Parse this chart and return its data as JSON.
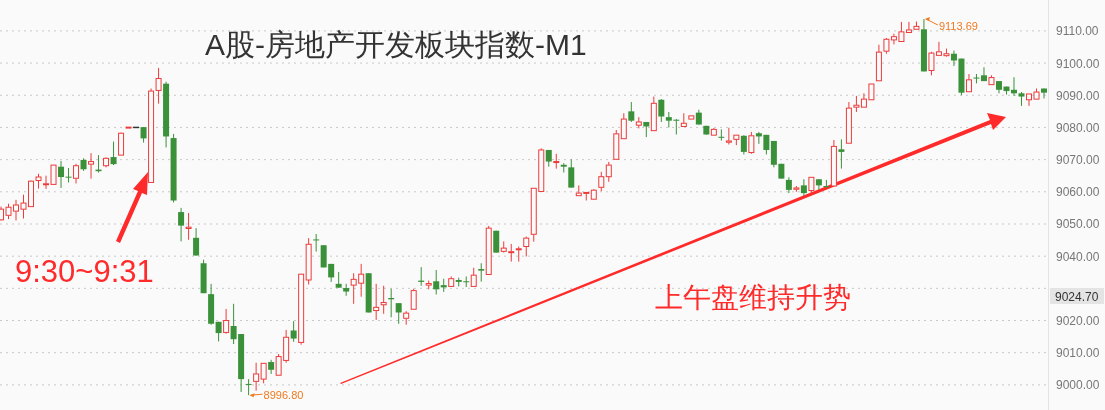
{
  "chart_data": {
    "type": "candlestick",
    "title": "A股-房地产开发板块指数-M1",
    "categories": [
      null,
      null,
      null,
      null,
      null,
      null,
      null,
      null,
      null,
      null,
      null,
      null,
      null,
      null,
      null,
      null,
      null,
      null,
      null,
      null,
      null,
      null,
      null,
      null,
      null,
      null,
      null,
      null,
      null,
      null,
      null,
      null,
      null,
      null,
      null,
      null,
      null,
      null,
      null,
      null,
      null,
      null,
      null,
      null,
      null,
      null,
      null,
      null,
      null,
      null,
      null,
      null,
      null,
      null,
      null,
      null,
      null,
      null,
      null,
      null,
      null,
      null,
      null,
      null,
      null,
      null,
      null,
      null,
      null,
      null,
      null,
      null,
      null,
      null,
      null,
      null,
      null,
      null,
      null,
      null,
      null,
      null,
      null,
      null,
      null,
      null,
      null,
      null,
      null,
      null,
      null,
      null,
      null,
      null,
      null,
      null,
      null,
      null,
      null,
      null,
      null,
      null,
      null,
      null,
      null,
      null,
      null,
      null,
      null,
      null,
      null,
      null,
      null,
      null,
      null,
      null,
      null,
      null,
      null,
      null,
      null,
      null,
      null,
      null,
      null,
      null,
      null,
      null,
      null,
      null,
      null,
      null,
      null,
      null,
      null,
      null,
      null,
      null,
      null,
      null
    ],
    "ohlc": [
      [
        9051.3,
        9055.4,
        9051.1,
        9054.6
      ],
      [
        9052.7,
        9056.3,
        9051.5,
        9055.2
      ],
      [
        9054.0,
        9057.5,
        9051.1,
        9055.9
      ],
      [
        9054.6,
        9059.1,
        9051.7,
        9056.5
      ],
      [
        9055.4,
        9063.5,
        9055.4,
        9063.3
      ],
      [
        9063.5,
        9065.6,
        9061.0,
        9064.6
      ],
      [
        9062.4,
        9065.0,
        9060.9,
        9062.5
      ],
      [
        9062.3,
        9068.3,
        9062.3,
        9068.3
      ],
      [
        9067.8,
        9069.6,
        9061.2,
        9064.6
      ],
      [
        9064.7,
        9067.4,
        9062.9,
        9064.5
      ],
      [
        9064.2,
        9068.7,
        9062.6,
        9068.1
      ],
      [
        9069.9,
        9070.4,
        9066.5,
        9067.0
      ],
      [
        9068.6,
        9072.0,
        9064.1,
        9069.4
      ],
      [
        9066.9,
        9071.4,
        9066.0,
        9066.4
      ],
      [
        9068.1,
        9070.7,
        9067.6,
        9070.4
      ],
      [
        9070.8,
        9075.6,
        9068.3,
        9068.6
      ],
      [
        9071.4,
        9078.4,
        9071.4,
        9078.2
      ],
      [
        9080.0,
        9080.1,
        9080.0,
        9080.1
      ],
      [
        9080.0,
        9080.0,
        9080.0,
        9080.0
      ],
      [
        9080.1,
        9080.1,
        9075.3,
        9076.6
      ],
      [
        9062.9,
        9092.1,
        9062.9,
        9091.3
      ],
      [
        9091.5,
        9098.5,
        9087.4,
        9095.2
      ],
      [
        9093.6,
        9094.2,
        9073.8,
        9077.2
      ],
      [
        9076.7,
        9078.0,
        9056.7,
        9057.3
      ],
      [
        9053.7,
        9055.0,
        9044.6,
        9049.5
      ],
      [
        9048.6,
        9053.4,
        9045.1,
        9049.0
      ],
      [
        9045.7,
        9048.7,
        9040.2,
        9040.2
      ],
      [
        9037.8,
        9038.9,
        9028.5,
        9028.5
      ],
      [
        9028.2,
        9031.4,
        9018.7,
        9019.0
      ],
      [
        9019.6,
        9019.6,
        9013.5,
        9016.1
      ],
      [
        9016.3,
        9023.6,
        9015.9,
        9020.0
      ],
      [
        9018.3,
        9025.2,
        9012.7,
        9014.2
      ],
      [
        9015.8,
        9015.8,
        8997.8,
        9001.8
      ],
      [
        9000.3,
        9001.8,
        8996.8,
        9000.0
      ],
      [
        9001.1,
        9006.9,
        8998.2,
        9003.4
      ],
      [
        9001.8,
        9006.7,
        9000.5,
        9006.7
      ],
      [
        9007.1,
        9007.8,
        9003.4,
        9004.7
      ],
      [
        9003.0,
        9009.6,
        9003.0,
        9008.8
      ],
      [
        9007.6,
        9017.1,
        9006.9,
        9014.8
      ],
      [
        9016.9,
        9019.8,
        9013.4,
        9014.4
      ],
      [
        9013.2,
        9034.4,
        9012.5,
        9034.4
      ],
      [
        9032.6,
        9045.6,
        9031.2,
        9043.7
      ],
      [
        9045.2,
        9046.9,
        9041.4,
        9045.0
      ],
      [
        9043.4,
        9043.4,
        9036.5,
        9036.5
      ],
      [
        9037.6,
        9037.6,
        9032.0,
        9033.4
      ],
      [
        9031.4,
        9035.1,
        9030.2,
        9030.2
      ],
      [
        9030.1,
        9031.4,
        9027.7,
        9029.0
      ],
      [
        9031.0,
        9034.7,
        9025.2,
        9032.8
      ],
      [
        9031.6,
        9037.6,
        9027.4,
        9034.4
      ],
      [
        9034.7,
        9034.7,
        9022.5,
        9022.5
      ],
      [
        9023.1,
        9031.4,
        9020.2,
        9024.1
      ],
      [
        9024.9,
        9030.8,
        9022.1,
        9025.6
      ],
      [
        9027.0,
        9029.9,
        9021.0,
        9026.6
      ],
      [
        9025.4,
        9025.4,
        9019.0,
        9022.5
      ],
      [
        9020.7,
        9022.9,
        9018.7,
        9022.3
      ],
      [
        9023.5,
        9029.9,
        9023.5,
        9029.3
      ],
      [
        9032.4,
        9036.6,
        9030.8,
        9032.0
      ],
      [
        9031.0,
        9032.4,
        9029.7,
        9031.5
      ],
      [
        9032.2,
        9035.7,
        9028.1,
        9029.7
      ],
      [
        9031.0,
        9033.0,
        9028.9,
        9030.3
      ],
      [
        9030.6,
        9033.7,
        9030.6,
        9033.0
      ],
      [
        9032.6,
        9033.3,
        9030.6,
        9032.0
      ],
      [
        9032.2,
        9033.7,
        9030.4,
        9031.9
      ],
      [
        9030.6,
        9036.4,
        9030.6,
        9034.1
      ],
      [
        9036.0,
        9037.8,
        9032.1,
        9035.5
      ],
      [
        9034.3,
        9049.4,
        9034.3,
        9048.7
      ],
      [
        9047.9,
        9047.9,
        9041.1,
        9041.1
      ],
      [
        9041.5,
        9044.6,
        9041.1,
        9042.5
      ],
      [
        9041.1,
        9043.8,
        9038.3,
        9041.4
      ],
      [
        9042.0,
        9043.0,
        9038.3,
        9042.3
      ],
      [
        9043.0,
        9046.1,
        9039.9,
        9045.6
      ],
      [
        9046.8,
        9061.1,
        9044.5,
        9061.1
      ],
      [
        9060.1,
        9073.5,
        9060.1,
        9073.0
      ],
      [
        9073.0,
        9073.0,
        9067.8,
        9069.4
      ],
      [
        9069.1,
        9071.8,
        9067.2,
        9069.4
      ],
      [
        9068.4,
        9068.9,
        9066.0,
        9067.8
      ],
      [
        9067.6,
        9070.1,
        9061.3,
        9061.3
      ],
      [
        9058.8,
        9062.0,
        9058.8,
        9059.6
      ],
      [
        9059.5,
        9059.8,
        9057.3,
        9059.8
      ],
      [
        9057.7,
        9060.8,
        9057.7,
        9060.5
      ],
      [
        9061.4,
        9066.2,
        9060.2,
        9064.7
      ],
      [
        9064.7,
        9069.3,
        9063.1,
        9068.3
      ],
      [
        9070.1,
        9079.2,
        9070.1,
        9078.0
      ],
      [
        9076.5,
        9084.4,
        9076.5,
        9082.6
      ],
      [
        9085.0,
        9087.9,
        9081.7,
        9082.1
      ],
      [
        9080.7,
        9083.2,
        9079.7,
        9081.7
      ],
      [
        9081.7,
        9081.7,
        9077.0,
        9080.3
      ],
      [
        9079.0,
        9089.6,
        9079.0,
        9087.5
      ],
      [
        9088.6,
        9088.8,
        9081.7,
        9083.4
      ],
      [
        9083.2,
        9084.8,
        9080.0,
        9082.1
      ],
      [
        9082.4,
        9082.6,
        9077.8,
        9082.3
      ],
      [
        9080.3,
        9084.4,
        9080.3,
        9081.3
      ],
      [
        9082.6,
        9083.6,
        9082.6,
        9083.6
      ],
      [
        9084.6,
        9085.5,
        9080.9,
        9080.9
      ],
      [
        9080.5,
        9080.5,
        9077.8,
        9077.8
      ],
      [
        9077.6,
        9079.8,
        9077.6,
        9079.4
      ],
      [
        9077.1,
        9079.4,
        9075.9,
        9076.8
      ],
      [
        9075.4,
        9079.9,
        9074.7,
        9075.8
      ],
      [
        9076.3,
        9077.6,
        9074.5,
        9077.6
      ],
      [
        9077.4,
        9077.6,
        9071.6,
        9072.4
      ],
      [
        9072.2,
        9078.6,
        9071.8,
        9077.4
      ],
      [
        9078.2,
        9078.6,
        9074.9,
        9077.2
      ],
      [
        9077.7,
        9077.7,
        9071.6,
        9073.0
      ],
      [
        9075.8,
        9075.8,
        9067.6,
        9068.4
      ],
      [
        9068.7,
        9068.7,
        9064.1,
        9064.1
      ],
      [
        9063.7,
        9064.5,
        9059.6,
        9060.6
      ],
      [
        9060.8,
        9061.8,
        9060.0,
        9061.2
      ],
      [
        9062.0,
        9063.9,
        9058.7,
        9059.6
      ],
      [
        9060.4,
        9064.5,
        9059.4,
        9064.5
      ],
      [
        9063.9,
        9063.9,
        9060.6,
        9062.0
      ],
      [
        9061.8,
        9063.7,
        9061.2,
        9061.6
      ],
      [
        9061.8,
        9076.1,
        9061.8,
        9074.1
      ],
      [
        9073.2,
        9076.3,
        9067.2,
        9072.4
      ],
      [
        9075.1,
        9087.9,
        9075.1,
        9086.0
      ],
      [
        9086.3,
        9089.8,
        9084.8,
        9086.9
      ],
      [
        9086.3,
        9090.6,
        9086.3,
        9088.8
      ],
      [
        9088.6,
        9093.5,
        9088.6,
        9093.5
      ],
      [
        9094.5,
        9105.7,
        9094.5,
        9103.4
      ],
      [
        9103.7,
        9107.8,
        9102.9,
        9107.4
      ],
      [
        9107.2,
        9109.1,
        9105.8,
        9108.2
      ],
      [
        9106.7,
        9112.8,
        9106.7,
        9109.7
      ],
      [
        9109.5,
        9112.8,
        9109.5,
        9110.3
      ],
      [
        9110.5,
        9112.9,
        9110.5,
        9111.4
      ],
      [
        9110.5,
        9113.69,
        9097.4,
        9097.4
      ],
      [
        9097.7,
        9103.5,
        9096.2,
        9103.1
      ],
      [
        9102.4,
        9106.6,
        9102.4,
        9103.5
      ],
      [
        9102.3,
        9104.5,
        9102.0,
        9102.9
      ],
      [
        9102.9,
        9103.9,
        9099.1,
        9100.8
      ],
      [
        9101.4,
        9101.4,
        9090.0,
        9090.8
      ],
      [
        9091.1,
        9096.6,
        9091.1,
        9094.8
      ],
      [
        9095.5,
        9096.6,
        9093.7,
        9095.3
      ],
      [
        9096.2,
        9098.7,
        9094.4,
        9094.4
      ],
      [
        9093.3,
        9096.2,
        9093.3,
        9095.5
      ],
      [
        9094.4,
        9094.4,
        9090.6,
        9091.7
      ],
      [
        9092.7,
        9092.7,
        9090.2,
        9091.3
      ],
      [
        9091.7,
        9095.6,
        9089.8,
        9090.6
      ],
      [
        9090.6,
        9091.0,
        9086.7,
        9089.6
      ],
      [
        9088.6,
        9090.4,
        9086.7,
        9090.4
      ],
      [
        9088.8,
        9092.1,
        9088.8,
        9091.0
      ],
      [
        9092.1,
        9092.1,
        9089.0,
        9090.8
      ]
    ],
    "ylim": [
      8992.2,
      9119.6
    ],
    "yticks": [
      {
        "value": 9000,
        "label": "9000.00"
      },
      {
        "value": 9010,
        "label": "9010.00"
      },
      {
        "value": 9020,
        "label": "9020.00"
      },
      {
        "value": 9030,
        "label": null
      },
      {
        "value": 9040,
        "label": "9040.00"
      },
      {
        "value": 9050,
        "label": "9050.00"
      },
      {
        "value": 9060,
        "label": "9060.00"
      },
      {
        "value": 9070,
        "label": "9070.00"
      },
      {
        "value": 9080,
        "label": "9080.00"
      },
      {
        "value": 9090,
        "label": "9090.00"
      },
      {
        "value": 9100,
        "label": "9100.00"
      },
      {
        "value": 9110,
        "label": "9110.00"
      }
    ],
    "grid": "y",
    "tick_labels": "y",
    "annotations": [
      "9:30~9:31",
      "上午盘维持升势",
      "8996.80",
      "9113.69",
      "9024.70"
    ]
  }
}
